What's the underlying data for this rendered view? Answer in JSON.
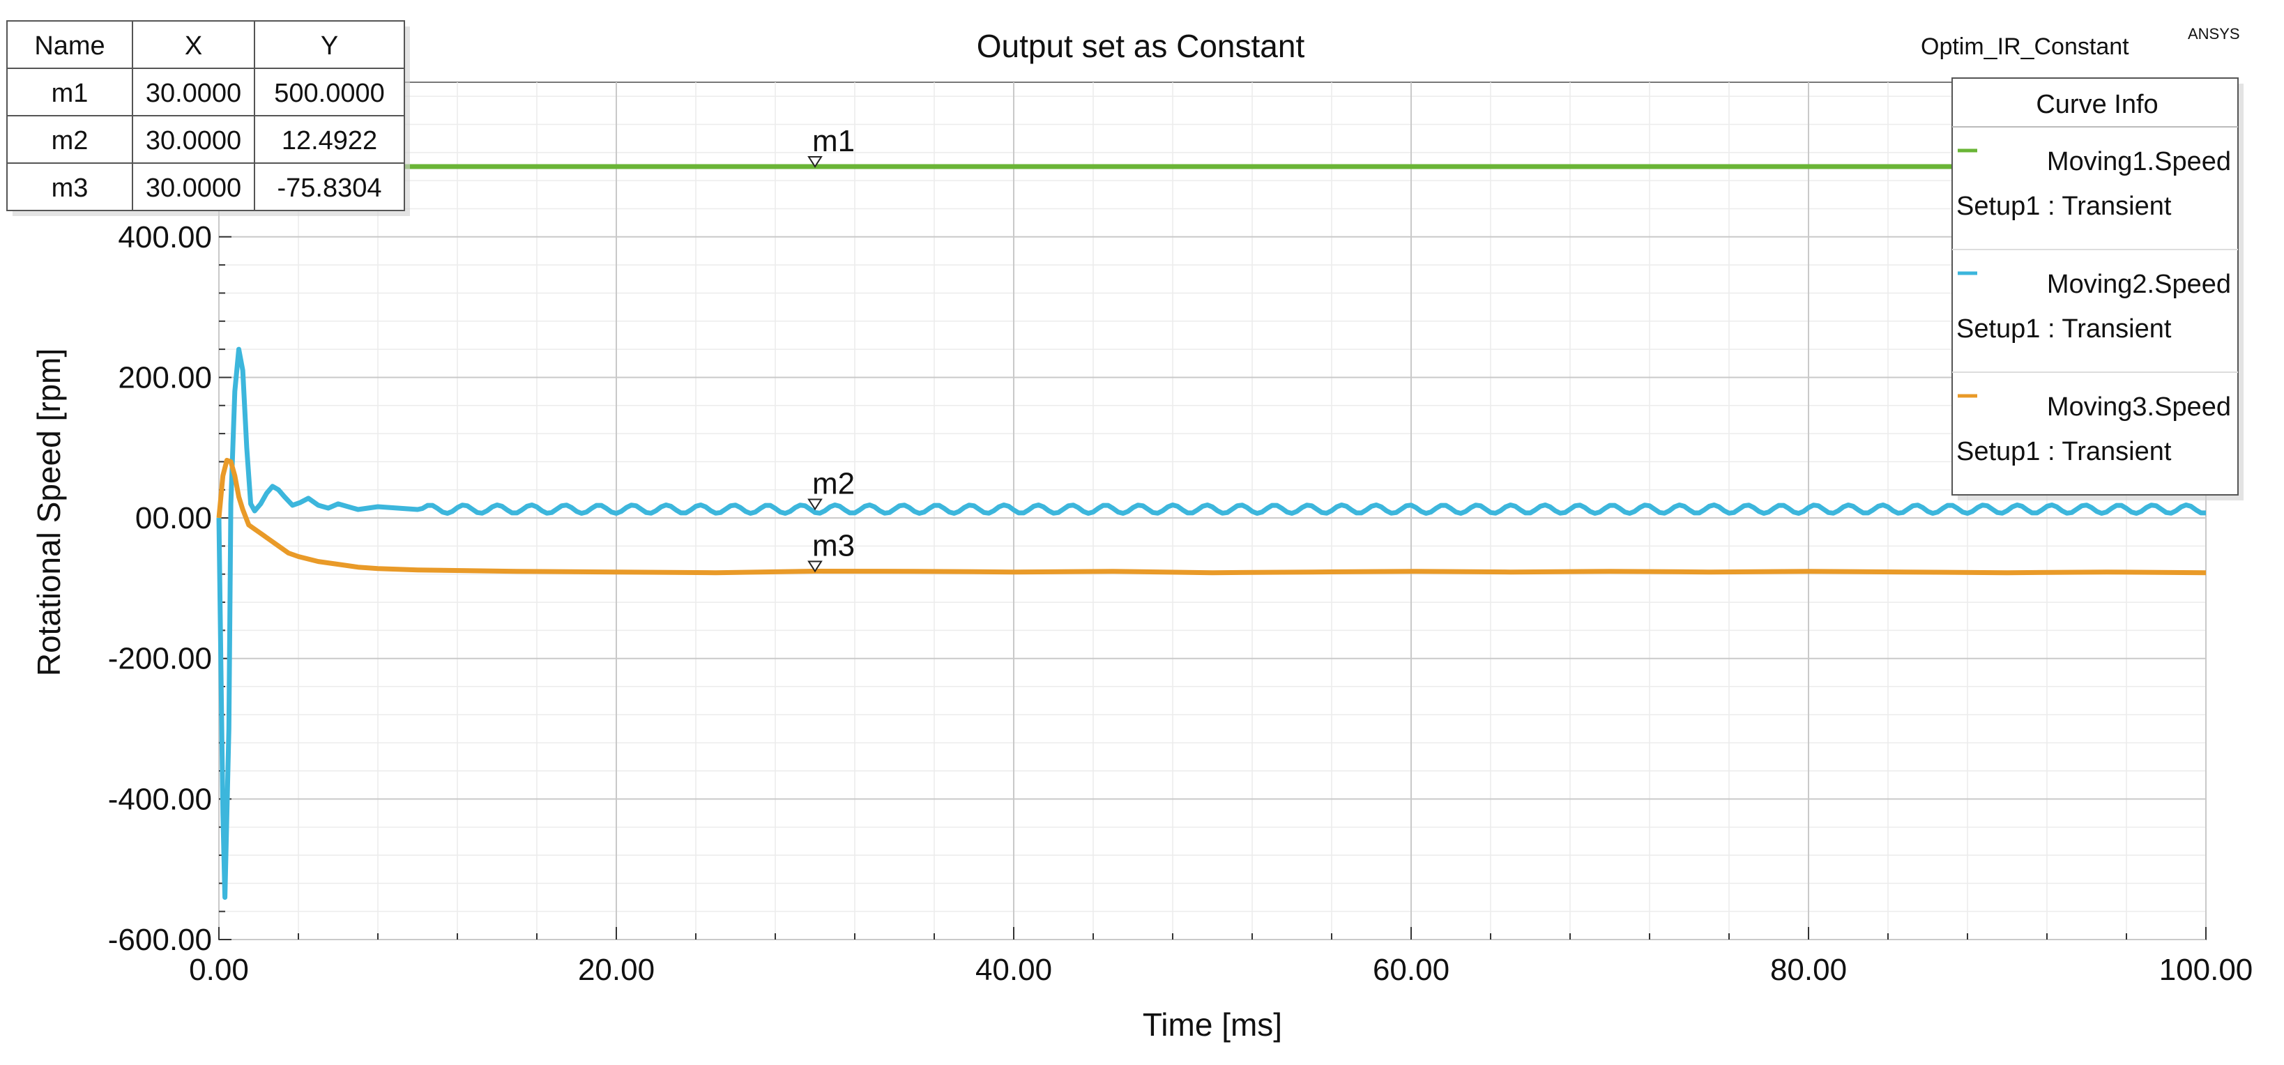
{
  "window": {
    "title": "Output set as Constant",
    "design_name": "Optim_IR_Constant",
    "brand": "ANSYS"
  },
  "marker_table": {
    "headers": [
      "Name",
      "X",
      "Y"
    ],
    "rows": [
      [
        "m1",
        "30.0000",
        "500.0000"
      ],
      [
        "m2",
        "30.0000",
        "12.4922"
      ],
      [
        "m3",
        "30.0000",
        "-75.8304"
      ]
    ]
  },
  "legend": {
    "title": "Curve Info",
    "placement": "top-right",
    "entries": [
      {
        "name": "Moving1.Speed",
        "sub": "Setup1 : Transient",
        "color": "#6ab536"
      },
      {
        "name": "Moving2.Speed",
        "sub": "Setup1 : Transient",
        "color": "#3cb6dc"
      },
      {
        "name": "Moving3.Speed",
        "sub": "Setup1 : Transient",
        "color": "#e99a28"
      }
    ]
  },
  "chart_data": {
    "type": "line",
    "title": "Output set as Constant",
    "xlabel": "Time [ms]",
    "ylabel": "Rotational Speed [rpm]",
    "xlim": [
      0,
      100
    ],
    "ylim": [
      -600,
      600
    ],
    "x_ticks": [
      "0.00",
      "20.00",
      "40.00",
      "60.00",
      "80.00",
      "100.00"
    ],
    "y_ticks": [
      "-600.00",
      "-400.00",
      "-200.00",
      "00.00",
      "200.00",
      "400.00"
    ],
    "x_tick_values": [
      0,
      20,
      40,
      60,
      80,
      100
    ],
    "y_tick_values": [
      -600,
      -400,
      -200,
      0,
      200,
      400
    ],
    "grid": true,
    "series": [
      {
        "name": "Moving1.Speed",
        "color": "#6ab536",
        "x": [
          0,
          100
        ],
        "y": [
          500,
          500
        ]
      },
      {
        "name": "Moving2.Speed",
        "color": "#3cb6dc",
        "x": [
          0,
          0.2,
          0.3,
          0.5,
          0.6,
          0.8,
          1.0,
          1.2,
          1.4,
          1.6,
          1.8,
          2.1,
          2.4,
          2.7,
          3.0,
          3.3,
          3.7,
          4.1,
          4.5,
          5.0,
          5.5,
          6.0,
          7.0,
          8.0,
          10.0
        ],
        "y": [
          0,
          -420,
          -540,
          -300,
          20,
          180,
          240,
          210,
          100,
          20,
          10,
          20,
          35,
          45,
          40,
          30,
          18,
          22,
          28,
          18,
          14,
          20,
          12,
          16,
          12
        ]
      },
      {
        "name": "Moving3.Speed",
        "color": "#e99a28",
        "x": [
          0,
          0.2,
          0.4,
          0.6,
          0.8,
          1.0,
          1.2,
          1.5,
          2.0,
          2.5,
          3.0,
          3.5,
          4.0,
          5.0,
          6.0,
          7.0,
          8.0,
          10.0,
          15.0,
          20.0,
          25.0,
          30.0,
          35.0,
          40.0,
          45.0,
          50.0,
          55.0,
          60.0,
          65.0,
          70.0,
          75.0,
          80.0,
          85.0,
          90.0,
          95.0,
          100.0
        ],
        "y": [
          0,
          60,
          82,
          80,
          60,
          30,
          12,
          -10,
          -20,
          -30,
          -40,
          -50,
          -55,
          -62,
          -66,
          -70,
          -72,
          -74,
          -76,
          -77,
          -78,
          -75.8,
          -76,
          -77,
          -76,
          -78,
          -77,
          -76,
          -77,
          -76,
          -77,
          -76,
          -77,
          -78,
          -77,
          -78
        ]
      }
    ],
    "markers": [
      {
        "name": "m1",
        "x": 30,
        "y": 500
      },
      {
        "name": "m2",
        "x": 30,
        "y": 12.4922
      },
      {
        "name": "m3",
        "x": 30,
        "y": -75.8304
      }
    ]
  }
}
